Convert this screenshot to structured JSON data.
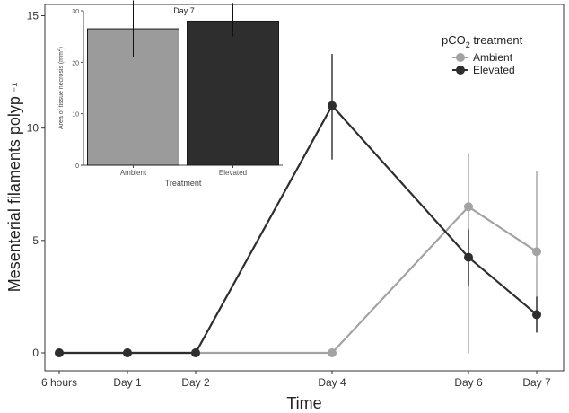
{
  "chart_data": [
    {
      "type": "line",
      "title": "",
      "xlabel": "Time",
      "ylabel": "Mesenterial filaments polyp",
      "ylabel_glyphs": "⁻¹",
      "categories": [
        "6 hours",
        "Day 1",
        "Day 2",
        "Day 4",
        "Day 6",
        "Day 7"
      ],
      "x_positions": [
        0,
        1,
        2,
        4,
        6,
        7
      ],
      "ylim": [
        -0.8,
        15.5
      ],
      "yticks": [
        0,
        5,
        10,
        15
      ],
      "grid": false,
      "legend": {
        "title_prefix": "pCO",
        "title_subscript": "2",
        "title_suffix": " treatment",
        "position": "top-right"
      },
      "series": [
        {
          "name": "Ambient",
          "color": "#a3a3a3",
          "values": [
            0,
            0,
            0,
            0,
            6.5,
            4.5
          ],
          "error": [
            null,
            null,
            null,
            null,
            [
              0,
              8.9
            ],
            [
              0.9,
              8.1
            ]
          ]
        },
        {
          "name": "Elevated",
          "color": "#2e2e2e",
          "values": [
            0,
            0,
            0,
            11.0,
            4.25,
            1.7
          ],
          "error": [
            null,
            null,
            null,
            [
              8.6,
              13.3
            ],
            [
              3.0,
              5.5
            ],
            [
              0.9,
              2.5
            ]
          ]
        }
      ]
    },
    {
      "type": "bar",
      "title": "Day 7",
      "xlabel": "Treatment",
      "ylabel_prefix": "Area of tissue necrosis (mm",
      "ylabel_superscript": "2",
      "ylabel_suffix": ")",
      "categories": [
        "Ambient",
        "Elevated"
      ],
      "values": [
        26.5,
        28.0
      ],
      "error": [
        [
          21.0,
          32.0
        ],
        [
          25.0,
          31.5
        ]
      ],
      "colors": [
        "#9b9b9b",
        "#2e2e2e"
      ],
      "ylim": [
        0,
        30
      ],
      "yticks": [
        0,
        10,
        20,
        30
      ],
      "position": "top-left inset"
    }
  ]
}
